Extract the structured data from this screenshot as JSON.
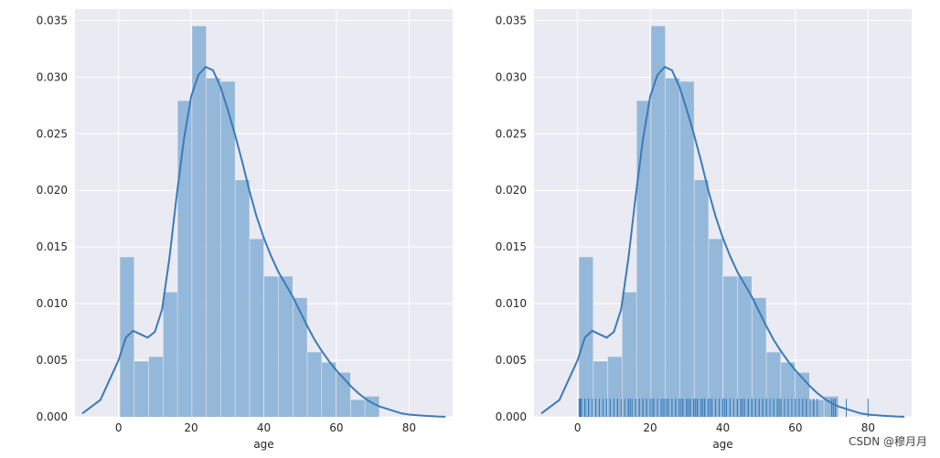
{
  "watermark": "CSDN @穆月月",
  "chart_data": [
    {
      "type": "histogram_kde",
      "xlabel": "age",
      "ylabel": "",
      "xlim": [
        -12,
        92
      ],
      "ylim": [
        0,
        0.036
      ],
      "xticks": [
        0,
        20,
        40,
        60,
        80
      ],
      "yticks": [
        0.0,
        0.005,
        0.01,
        0.015,
        0.02,
        0.025,
        0.03,
        0.035
      ],
      "ytick_labels": [
        "0.000",
        "0.005",
        "0.010",
        "0.015",
        "0.020",
        "0.025",
        "0.030",
        "0.035"
      ],
      "grid": true,
      "colors": {
        "bar": "#8fb5d8",
        "line": "#3a7bb8",
        "bg": "#eaeaf2",
        "grid": "#ffffff"
      },
      "bin_edges": [
        0.42,
        4.39,
        8.36,
        12.33,
        16.31,
        20.28,
        24.25,
        28.22,
        32.19,
        36.16,
        40.13,
        44.1,
        48.08,
        52.05,
        56.02,
        59.99,
        63.96,
        67.93,
        71.9,
        75.87,
        79.84
      ],
      "bin_heights": [
        0.0141,
        0.0049,
        0.0053,
        0.011,
        0.0279,
        0.0345,
        0.0299,
        0.0296,
        0.0209,
        0.0157,
        0.0124,
        0.0124,
        0.0105,
        0.0057,
        0.0048,
        0.0039,
        0.0015,
        0.0018,
        0,
        0
      ],
      "kde": {
        "x": [
          -10,
          -5,
          0,
          2,
          4,
          6,
          8,
          10,
          12,
          14,
          16,
          18,
          20,
          22,
          24,
          26,
          28,
          30,
          32,
          34,
          36,
          38,
          40,
          42,
          44,
          46,
          48,
          50,
          52,
          54,
          56,
          58,
          60,
          62,
          64,
          66,
          68,
          70,
          72,
          74,
          76,
          78,
          80,
          84,
          88,
          90
        ],
        "y": [
          0.0003,
          0.0015,
          0.005,
          0.007,
          0.0076,
          0.0073,
          0.007,
          0.0075,
          0.0095,
          0.014,
          0.0195,
          0.0245,
          0.0283,
          0.0302,
          0.0309,
          0.0306,
          0.0292,
          0.0272,
          0.025,
          0.0226,
          0.02,
          0.0177,
          0.0158,
          0.0142,
          0.0128,
          0.0117,
          0.0106,
          0.0093,
          0.008,
          0.0068,
          0.0058,
          0.0049,
          0.0041,
          0.0034,
          0.0027,
          0.0021,
          0.0016,
          0.0012,
          0.0009,
          0.0007,
          0.0005,
          0.0003,
          0.0002,
          0.0001,
          3e-05,
          1e-05
        ]
      },
      "rug": []
    },
    {
      "type": "histogram_kde",
      "xlabel": "age",
      "ylabel": "",
      "xlim": [
        -12,
        92
      ],
      "ylim": [
        0,
        0.036
      ],
      "xticks": [
        0,
        20,
        40,
        60,
        80
      ],
      "yticks": [
        0.0,
        0.005,
        0.01,
        0.015,
        0.02,
        0.025,
        0.03,
        0.035
      ],
      "ytick_labels": [
        "0.000",
        "0.005",
        "0.010",
        "0.015",
        "0.020",
        "0.025",
        "0.030",
        "0.035"
      ],
      "grid": true,
      "colors": {
        "bar": "#8fb5d8",
        "line": "#3a7bb8",
        "bg": "#eaeaf2",
        "grid": "#ffffff"
      },
      "bin_edges": [
        0.42,
        4.39,
        8.36,
        12.33,
        16.31,
        20.28,
        24.25,
        28.22,
        32.19,
        36.16,
        40.13,
        44.1,
        48.08,
        52.05,
        56.02,
        59.99,
        63.96,
        67.93,
        71.9,
        75.87,
        79.84
      ],
      "bin_heights": [
        0.0141,
        0.0049,
        0.0053,
        0.011,
        0.0279,
        0.0345,
        0.0299,
        0.0296,
        0.0209,
        0.0157,
        0.0124,
        0.0124,
        0.0105,
        0.0057,
        0.0048,
        0.0039,
        0.0015,
        0.0018,
        0,
        0
      ],
      "kde": {
        "x": [
          -10,
          -5,
          0,
          2,
          4,
          6,
          8,
          10,
          12,
          14,
          16,
          18,
          20,
          22,
          24,
          26,
          28,
          30,
          32,
          34,
          36,
          38,
          40,
          42,
          44,
          46,
          48,
          50,
          52,
          54,
          56,
          58,
          60,
          62,
          64,
          66,
          68,
          70,
          72,
          74,
          76,
          78,
          80,
          84,
          88,
          90
        ],
        "y": [
          0.0003,
          0.0015,
          0.005,
          0.007,
          0.0076,
          0.0073,
          0.007,
          0.0075,
          0.0095,
          0.014,
          0.0195,
          0.0245,
          0.0283,
          0.0302,
          0.0309,
          0.0306,
          0.0292,
          0.0272,
          0.025,
          0.0226,
          0.02,
          0.0177,
          0.0158,
          0.0142,
          0.0128,
          0.0117,
          0.0106,
          0.0093,
          0.008,
          0.0068,
          0.0058,
          0.0049,
          0.0041,
          0.0034,
          0.0027,
          0.0021,
          0.0016,
          0.0012,
          0.0009,
          0.0007,
          0.0005,
          0.0003,
          0.0002,
          0.0001,
          3e-05,
          1e-05
        ]
      },
      "rug": [
        0.42,
        0.67,
        0.75,
        0.83,
        0.92,
        1,
        1,
        1,
        1,
        1,
        2,
        2,
        2,
        2,
        2,
        3,
        3,
        3,
        3,
        4,
        4,
        4,
        4,
        4,
        5,
        5,
        6,
        6,
        7,
        8,
        8,
        9,
        9,
        10,
        11,
        11,
        12,
        13,
        14,
        14,
        14.5,
        15,
        16,
        16,
        17,
        17,
        18,
        18,
        18,
        19,
        19,
        19,
        20,
        20,
        20.5,
        21,
        21,
        21,
        22,
        22,
        22,
        23,
        23,
        23,
        23.5,
        24,
        24,
        24,
        24,
        24.5,
        25,
        25,
        25,
        26,
        26,
        26,
        27,
        27,
        27,
        28,
        28,
        28,
        28.5,
        29,
        29,
        29,
        30,
        30,
        30,
        30.5,
        31,
        31,
        31,
        32,
        32,
        32,
        32.5,
        33,
        33,
        33,
        34,
        34,
        34,
        34.5,
        35,
        35,
        35,
        36,
        36,
        36,
        36.5,
        37,
        37,
        38,
        38,
        39,
        39,
        40,
        40,
        40.5,
        41,
        41,
        42,
        42,
        43,
        44,
        44,
        45,
        45,
        45.5,
        46,
        47,
        47,
        48,
        48,
        49,
        49,
        50,
        50,
        51,
        51,
        52,
        52,
        53,
        54,
        54,
        55,
        55.5,
        56,
        56,
        57,
        58,
        58,
        59,
        60,
        60,
        61,
        61,
        62,
        62,
        63,
        63,
        64,
        65,
        65,
        66,
        70,
        70,
        70.5,
        71,
        71,
        74,
        80
      ]
    }
  ]
}
